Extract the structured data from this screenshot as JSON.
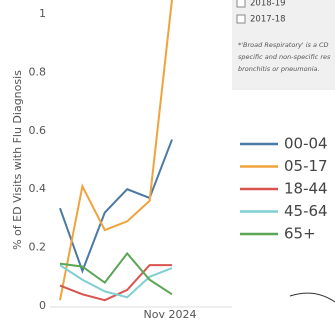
{
  "chart_data": {
    "type": "line",
    "y_label": "% of ED Visits with Flu Diagnosis",
    "categories": [
      null,
      null,
      null,
      null,
      null,
      "Nov 2024"
    ],
    "ylim": [
      0,
      1.05
    ],
    "yticks": [
      0,
      0.2,
      0.4,
      0.6,
      0.8,
      1
    ],
    "series": [
      {
        "name": "00-04",
        "color": "#4a79a6",
        "values": [
          0.335,
          0.12,
          0.32,
          0.4,
          0.37,
          0.57
        ]
      },
      {
        "name": "05-17",
        "color": "#f0a33c",
        "values": [
          0.02,
          0.41,
          0.26,
          0.29,
          0.36,
          1.05
        ]
      },
      {
        "name": "18-44",
        "color": "#d9534f",
        "values": [
          0.07,
          0.04,
          0.02,
          0.055,
          0.14,
          0.14
        ]
      },
      {
        "name": "45-64",
        "color": "#7fcfd3",
        "values": [
          0.14,
          0.09,
          0.05,
          0.03,
          0.1,
          0.13
        ]
      },
      {
        "name": "65+",
        "color": "#5aa655",
        "values": [
          0.145,
          0.135,
          0.08,
          0.18,
          0.09,
          0.04
        ]
      }
    ]
  },
  "panel": {
    "checkboxes": [
      "2018-19",
      "2017-18"
    ],
    "note_lines": [
      "*'Broad Respiratory' is a CD",
      "specific and non-specific res",
      "bronchitis or pneumonia."
    ]
  }
}
